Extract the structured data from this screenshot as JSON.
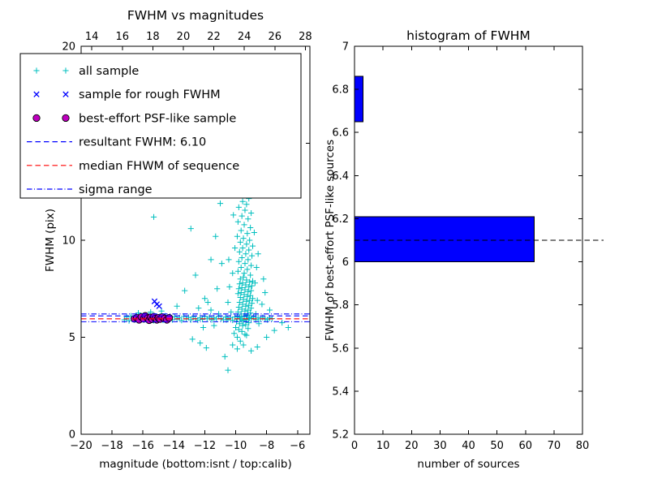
{
  "figure": {
    "background": "#ffffff"
  },
  "chart_data": [
    {
      "type": "scatter",
      "title": "FWHM vs magnitudes",
      "xlabel": "magnitude (bottom:isnt / top:calib)",
      "ylabel": "FWHM (pix)",
      "xlim": [
        -20,
        -5.2
      ],
      "ylim": [
        0,
        20
      ],
      "top_xlim": [
        13.3,
        28.3
      ],
      "xticks_bottom": [
        -20,
        -18,
        -16,
        -14,
        -12,
        -10,
        -8,
        -6
      ],
      "xticks_top": [
        14,
        16,
        18,
        20,
        22,
        24,
        26,
        28
      ],
      "yticks": [
        0,
        5,
        10,
        15,
        20
      ],
      "series": [
        {
          "name": "all sample",
          "marker": "plus",
          "color": "#00bfbf",
          "points": [
            [
              -17.2,
              5.9
            ],
            [
              -17.05,
              6.05
            ],
            [
              -16.9,
              5.85
            ],
            [
              -16.78,
              6.1
            ],
            [
              -16.62,
              5.95
            ],
            [
              -16.5,
              6.0
            ],
            [
              -16.35,
              5.88
            ],
            [
              -16.2,
              6.08
            ],
            [
              -16.05,
              5.93
            ],
            [
              -15.9,
              6.02
            ],
            [
              -15.75,
              5.9
            ],
            [
              -15.6,
              6.12
            ],
            [
              -15.45,
              5.96
            ],
            [
              -15.3,
              5.86
            ],
            [
              -15.15,
              6.05
            ],
            [
              -15.0,
              5.92
            ],
            [
              -14.85,
              6.0
            ],
            [
              -14.7,
              5.88
            ],
            [
              -14.55,
              6.1
            ],
            [
              -14.4,
              5.95
            ],
            [
              -14.25,
              6.03
            ],
            [
              -14.1,
              5.9
            ],
            [
              -13.95,
              6.06
            ],
            [
              -13.8,
              5.93
            ],
            [
              -13.65,
              6.0
            ],
            [
              -13.5,
              5.87
            ],
            [
              -13.35,
              6.08
            ],
            [
              -13.2,
              5.94
            ],
            [
              -13.05,
              6.02
            ],
            [
              -12.9,
              5.9
            ],
            [
              -12.75,
              6.05
            ],
            [
              -12.6,
              5.96
            ],
            [
              -12.45,
              5.88
            ],
            [
              -12.3,
              6.0
            ],
            [
              -12.15,
              5.92
            ],
            [
              -12.0,
              6.07
            ],
            [
              -11.85,
              5.95
            ],
            [
              -11.7,
              6.03
            ],
            [
              -11.55,
              5.9
            ],
            [
              -11.4,
              6.0
            ],
            [
              -11.25,
              5.94
            ],
            [
              -11.1,
              6.08
            ],
            [
              -10.95,
              5.97
            ],
            [
              -10.8,
              5.9
            ],
            [
              -10.65,
              6.04
            ],
            [
              -10.5,
              5.93
            ],
            [
              -10.35,
              6.0
            ],
            [
              -10.2,
              5.88
            ],
            [
              -10.05,
              6.05
            ],
            [
              -9.9,
              5.95
            ],
            [
              -9.75,
              6.02
            ],
            [
              -9.6,
              5.9
            ],
            [
              -9.45,
              6.06
            ],
            [
              -9.3,
              5.93
            ],
            [
              -9.15,
              6.0
            ],
            [
              -9.0,
              5.96
            ],
            [
              -8.85,
              6.04
            ],
            [
              -8.7,
              5.9
            ],
            [
              -8.55,
              6.0
            ],
            [
              -8.4,
              5.94
            ],
            [
              -8.25,
              6.02
            ],
            [
              -8.1,
              5.95
            ],
            [
              -7.95,
              5.9
            ],
            [
              -7.8,
              6.0
            ],
            [
              -7.65,
              5.96
            ],
            [
              -9.7,
              4.8
            ],
            [
              -9.5,
              4.6
            ],
            [
              -9.9,
              5.0
            ],
            [
              -9.3,
              5.1
            ],
            [
              -10.1,
              5.2
            ],
            [
              -9.6,
              5.3
            ],
            [
              -9.4,
              5.15
            ],
            [
              -9.8,
              5.4
            ],
            [
              -9.2,
              5.45
            ],
            [
              -10.0,
              5.5
            ],
            [
              -9.55,
              5.6
            ],
            [
              -9.35,
              5.65
            ],
            [
              -9.75,
              5.7
            ],
            [
              -9.15,
              5.75
            ],
            [
              -9.95,
              5.8
            ],
            [
              -9.5,
              5.85
            ],
            [
              -9.3,
              5.9
            ],
            [
              -9.7,
              5.95
            ],
            [
              -9.1,
              6.0
            ],
            [
              -9.9,
              6.05
            ],
            [
              -9.45,
              6.1
            ],
            [
              -9.25,
              6.15
            ],
            [
              -9.65,
              6.2
            ],
            [
              -9.05,
              6.25
            ],
            [
              -9.85,
              6.3
            ],
            [
              -9.4,
              6.35
            ],
            [
              -9.2,
              6.4
            ],
            [
              -9.6,
              6.45
            ],
            [
              -9.0,
              6.5
            ],
            [
              -9.8,
              6.55
            ],
            [
              -9.35,
              6.6
            ],
            [
              -9.15,
              6.65
            ],
            [
              -9.55,
              6.7
            ],
            [
              -8.95,
              6.75
            ],
            [
              -9.75,
              6.8
            ],
            [
              -9.3,
              6.85
            ],
            [
              -9.1,
              6.9
            ],
            [
              -9.5,
              6.95
            ],
            [
              -8.9,
              7.0
            ],
            [
              -9.7,
              7.05
            ],
            [
              -9.25,
              7.1
            ],
            [
              -9.05,
              7.15
            ],
            [
              -9.45,
              7.2
            ],
            [
              -9.85,
              7.25
            ],
            [
              -9.65,
              7.3
            ],
            [
              -9.2,
              7.35
            ],
            [
              -9.0,
              7.4
            ],
            [
              -9.4,
              7.45
            ],
            [
              -9.8,
              7.5
            ],
            [
              -9.6,
              7.55
            ],
            [
              -9.15,
              7.6
            ],
            [
              -8.95,
              7.65
            ],
            [
              -9.35,
              7.7
            ],
            [
              -9.75,
              7.75
            ],
            [
              -9.55,
              7.8
            ],
            [
              -9.1,
              7.85
            ],
            [
              -8.9,
              7.9
            ],
            [
              -9.3,
              7.95
            ],
            [
              -9.7,
              8.0
            ],
            [
              -9.5,
              8.1
            ],
            [
              -9.05,
              8.2
            ],
            [
              -9.45,
              8.3
            ],
            [
              -9.85,
              8.4
            ],
            [
              -9.25,
              8.5
            ],
            [
              -9.65,
              8.6
            ],
            [
              -9.0,
              8.7
            ],
            [
              -9.4,
              8.8
            ],
            [
              -9.8,
              8.9
            ],
            [
              -9.2,
              9.0
            ],
            [
              -9.6,
              9.1
            ],
            [
              -8.95,
              9.2
            ],
            [
              -9.35,
              9.3
            ],
            [
              -9.75,
              9.4
            ],
            [
              -9.15,
              9.5
            ],
            [
              -9.55,
              9.6
            ],
            [
              -8.9,
              9.7
            ],
            [
              -9.3,
              9.8
            ],
            [
              -9.7,
              9.9
            ],
            [
              -9.1,
              10.0
            ],
            [
              -9.5,
              10.1
            ],
            [
              -9.9,
              10.2
            ],
            [
              -9.25,
              10.35
            ],
            [
              -9.65,
              10.5
            ],
            [
              -9.05,
              10.65
            ],
            [
              -9.45,
              10.8
            ],
            [
              -9.85,
              10.95
            ],
            [
              -9.2,
              11.1
            ],
            [
              -9.6,
              11.25
            ],
            [
              -9.0,
              11.4
            ],
            [
              -9.4,
              11.55
            ],
            [
              -9.8,
              11.7
            ],
            [
              -9.3,
              11.85
            ],
            [
              -9.55,
              12.0
            ],
            [
              -9.15,
              12.15
            ],
            [
              -9.45,
              12.3
            ],
            [
              -9.7,
              12.45
            ],
            [
              -10.3,
              6.3
            ],
            [
              -10.5,
              6.8
            ],
            [
              -10.4,
              7.6
            ],
            [
              -10.6,
              5.9
            ],
            [
              -10.2,
              8.3
            ],
            [
              -10.45,
              9.0
            ],
            [
              -8.7,
              6.2
            ],
            [
              -8.6,
              6.9
            ],
            [
              -8.75,
              7.8
            ],
            [
              -8.5,
              5.7
            ],
            [
              -8.65,
              8.6
            ],
            [
              -10.15,
              11.3
            ],
            [
              -10.05,
              9.6
            ],
            [
              -8.8,
              10.4
            ],
            [
              -8.55,
              9.3
            ],
            [
              -15.3,
              11.2
            ],
            [
              -15.0,
              12.4
            ],
            [
              -12.9,
              10.6
            ],
            [
              -11.6,
              9.0
            ],
            [
              -11.3,
              10.2
            ],
            [
              -11.0,
              11.9
            ],
            [
              -13.3,
              7.4
            ],
            [
              -12.3,
              4.7
            ],
            [
              -11.9,
              4.45
            ],
            [
              -10.7,
              4.0
            ],
            [
              -8.6,
              4.5
            ],
            [
              -8.0,
              5.0
            ],
            [
              -7.5,
              5.35
            ],
            [
              -7.0,
              5.75
            ],
            [
              -6.6,
              5.5
            ],
            [
              -12.6,
              8.2
            ],
            [
              -11.2,
              7.5
            ],
            [
              -10.9,
              8.8
            ],
            [
              -12.0,
              7.0
            ],
            [
              -13.8,
              6.6
            ],
            [
              -9.0,
              4.3
            ],
            [
              -9.9,
              4.4
            ],
            [
              -10.2,
              4.6
            ],
            [
              -8.3,
              6.7
            ],
            [
              -8.1,
              7.3
            ],
            [
              -7.8,
              6.4
            ],
            [
              -8.2,
              8.0
            ],
            [
              -11.6,
              6.4
            ],
            [
              -11.4,
              5.6
            ],
            [
              -11.8,
              6.8
            ],
            [
              -11.1,
              6.2
            ],
            [
              -12.4,
              6.5
            ],
            [
              -12.1,
              5.5
            ],
            [
              -15.5,
              6.3
            ],
            [
              -14.8,
              6.35
            ],
            [
              -16.3,
              6.25
            ],
            [
              -10.5,
              3.3
            ],
            [
              -12.8,
              4.9
            ]
          ]
        },
        {
          "name": "sample for rough FWHM",
          "marker": "x",
          "color": "#0000ff",
          "points": [
            [
              -15.25,
              6.85
            ],
            [
              -14.95,
              6.6
            ],
            [
              -15.1,
              6.7
            ]
          ]
        },
        {
          "name": "best-effort PSF-like sample",
          "marker": "circle",
          "color": "#bf00bf",
          "edge": "#000000",
          "points": [
            [
              -16.55,
              5.95
            ],
            [
              -16.4,
              6.0
            ],
            [
              -16.25,
              5.9
            ],
            [
              -16.1,
              6.05
            ],
            [
              -15.95,
              5.95
            ],
            [
              -15.85,
              6.1
            ],
            [
              -15.7,
              5.98
            ],
            [
              -15.6,
              5.88
            ],
            [
              -15.5,
              6.02
            ],
            [
              -15.4,
              5.93
            ],
            [
              -15.3,
              6.06
            ],
            [
              -15.2,
              5.96
            ],
            [
              -15.1,
              5.9
            ],
            [
              -15.0,
              6.0
            ],
            [
              -14.9,
              5.94
            ],
            [
              -14.75,
              6.04
            ],
            [
              -14.6,
              5.97
            ],
            [
              -14.45,
              5.9
            ],
            [
              -14.3,
              6.0
            ]
          ]
        }
      ],
      "lines": [
        {
          "name": "resultant FWHM: 6.10",
          "y": 6.1,
          "style": "dashed",
          "color": "#0000ff"
        },
        {
          "name": "median FHWM of sequence",
          "y": 5.95,
          "style": "dashed",
          "color": "#ff0000"
        },
        {
          "name": "sigma range",
          "y": [
            5.8,
            6.2
          ],
          "style": "dashdot",
          "color": "#0000ff"
        }
      ]
    },
    {
      "type": "bar",
      "orientation": "horizontal",
      "title": "histogram of FWHM",
      "xlabel": "number of sources",
      "ylabel": "FWHM of best-effort PSF-like sources",
      "xlim": [
        0,
        80
      ],
      "ylim": [
        5.2,
        7.0
      ],
      "xticks": [
        0,
        10,
        20,
        30,
        40,
        50,
        60,
        70,
        80
      ],
      "yticks": [
        5.2,
        5.4,
        5.6,
        5.8,
        6.0,
        6.2,
        6.4,
        6.6,
        6.8,
        7.0
      ],
      "bar_color": "#0000ff",
      "bars": [
        {
          "from": 6.0,
          "to": 6.21,
          "count": 63
        },
        {
          "from": 6.65,
          "to": 6.86,
          "count": 3
        }
      ],
      "median_line": {
        "y": 6.1,
        "style": "dashed",
        "color": "#000000"
      }
    }
  ],
  "legend": {
    "items": [
      {
        "label": "all sample",
        "marker": "plus",
        "color": "#00bfbf"
      },
      {
        "label": "sample for rough FWHM",
        "marker": "x",
        "color": "#0000ff"
      },
      {
        "label": "best-effort PSF-like sample",
        "marker": "circle",
        "color": "#bf00bf"
      },
      {
        "label": "resultant FWHM: 6.10",
        "marker": "dashed-line",
        "color": "#0000ff"
      },
      {
        "label": "median FHWM of sequence",
        "marker": "dashed-line",
        "color": "#ff0000"
      },
      {
        "label": "sigma range",
        "marker": "dashdot-line",
        "color": "#0000ff"
      }
    ]
  }
}
